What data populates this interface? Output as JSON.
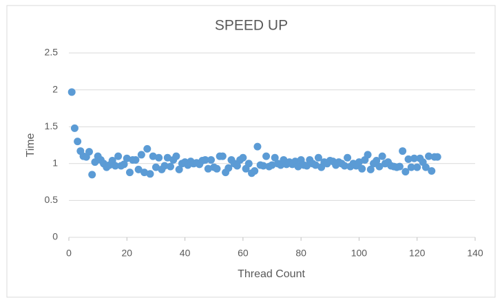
{
  "chart_data": {
    "type": "scatter",
    "title": "SPEED UP",
    "xlabel": "Thread Count",
    "ylabel": "Time",
    "x": [
      1,
      2,
      3,
      4,
      5,
      6,
      7,
      8,
      9,
      10,
      11,
      12,
      13,
      14,
      15,
      16,
      17,
      18,
      19,
      20,
      21,
      22,
      23,
      24,
      25,
      26,
      27,
      28,
      29,
      30,
      31,
      32,
      33,
      34,
      35,
      36,
      37,
      38,
      39,
      40,
      41,
      42,
      43,
      44,
      45,
      46,
      47,
      48,
      49,
      50,
      51,
      52,
      53,
      54,
      55,
      56,
      57,
      58,
      59,
      60,
      61,
      62,
      63,
      64,
      65,
      66,
      67,
      68,
      69,
      70,
      71,
      72,
      73,
      74,
      75,
      76,
      77,
      78,
      79,
      80,
      81,
      82,
      83,
      84,
      85,
      86,
      87,
      88,
      89,
      90,
      91,
      92,
      93,
      94,
      95,
      96,
      97,
      98,
      99,
      100,
      101,
      102,
      103,
      104,
      105,
      106,
      107,
      108,
      109,
      110,
      111,
      112,
      113,
      114,
      115,
      116,
      117,
      118,
      119,
      120,
      121,
      122,
      123,
      124,
      125,
      126,
      127
    ],
    "values": [
      1.97,
      1.48,
      1.3,
      1.17,
      1.1,
      1.09,
      1.16,
      0.85,
      1.02,
      1.1,
      1.05,
      1.0,
      0.95,
      0.98,
      1.04,
      0.97,
      1.1,
      0.97,
      0.99,
      1.07,
      0.88,
      1.05,
      1.05,
      0.92,
      1.12,
      0.88,
      1.2,
      0.86,
      1.1,
      0.95,
      1.08,
      0.92,
      0.97,
      1.08,
      0.96,
      1.05,
      1.1,
      0.92,
      1.0,
      1.02,
      0.98,
      1.03,
      1.0,
      1.01,
      0.99,
      1.04,
      1.05,
      0.93,
      1.05,
      0.95,
      0.93,
      1.1,
      1.1,
      0.88,
      0.94,
      1.05,
      1.0,
      0.97,
      1.05,
      1.08,
      0.93,
      1.0,
      0.87,
      0.9,
      1.23,
      0.98,
      0.97,
      1.1,
      0.96,
      0.98,
      1.08,
      1.0,
      0.98,
      1.05,
      0.99,
      1.02,
      0.99,
      1.03,
      0.96,
      1.05,
      0.98,
      0.97,
      1.05,
      1.0,
      0.98,
      1.08,
      0.95,
      1.02,
      1.0,
      1.04,
      1.03,
      0.98,
      1.02,
      1.0,
      0.97,
      1.08,
      0.96,
      1.0,
      0.97,
      1.02,
      0.93,
      1.05,
      1.12,
      0.92,
      1.0,
      1.04,
      0.96,
      1.1,
      1.0,
      1.02,
      0.97,
      0.96,
      0.95,
      0.96,
      1.17,
      0.89,
      1.06,
      0.95,
      1.07,
      0.95,
      1.07,
      1.02,
      0.95,
      1.1,
      0.9,
      1.09,
      1.09
    ],
    "color": "#5b9bd5",
    "xlim": [
      0,
      140
    ],
    "xticks": [
      0,
      20,
      40,
      60,
      80,
      100,
      120,
      140
    ],
    "ylim": [
      0,
      2.5
    ],
    "yticks": [
      0,
      0.5,
      1,
      1.5,
      2,
      2.5
    ],
    "grid": true
  }
}
